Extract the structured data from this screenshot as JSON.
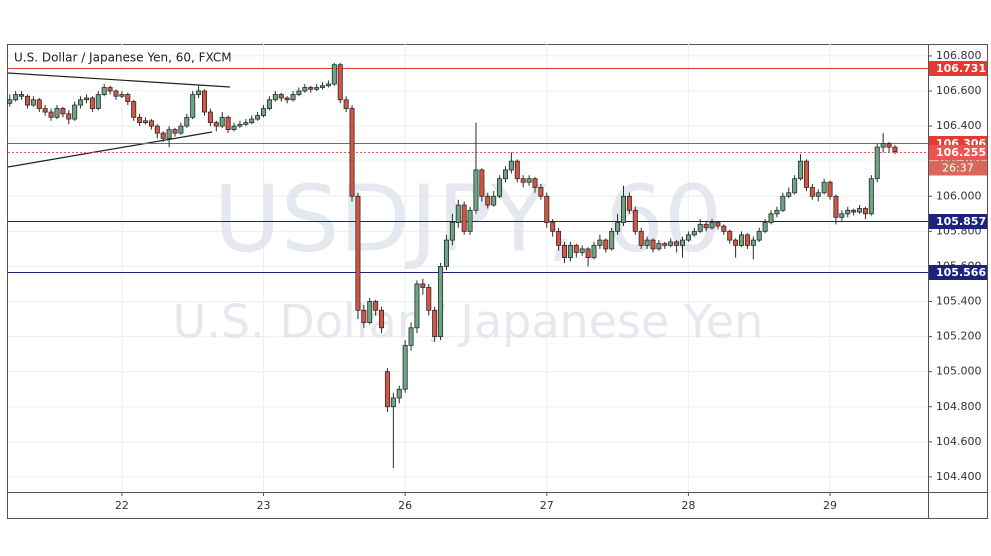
{
  "chart_data": {
    "type": "candlestick",
    "title": "U.S. Dollar / Japanese Yen, 60, FXCM",
    "watermark_symbol": "USDJPY, 60",
    "watermark_name": "U.S. Dollar / Japanese Yen",
    "countdown": "26:37",
    "up_color": "#6ba583",
    "down_color": "#d75442",
    "wick_color": "#2b2b2b",
    "grid": true,
    "xlim": [
      -0.3,
      155.6
    ],
    "xticks": [
      {
        "value": 19,
        "label": "22"
      },
      {
        "value": 43,
        "label": "23"
      },
      {
        "value": 67,
        "label": "26"
      },
      {
        "value": 91,
        "label": "27"
      },
      {
        "value": 115,
        "label": "28"
      },
      {
        "value": 139,
        "label": "29"
      }
    ],
    "ylim": [
      104.314,
      106.868
    ],
    "yticks": [
      {
        "value": 104.4,
        "label": "104.400"
      },
      {
        "value": 104.6,
        "label": "104.600"
      },
      {
        "value": 104.8,
        "label": "104.800"
      },
      {
        "value": 105.0,
        "label": "105.000"
      },
      {
        "value": 105.2,
        "label": "105.200"
      },
      {
        "value": 105.4,
        "label": "105.400"
      },
      {
        "value": 105.6,
        "label": "105.600"
      },
      {
        "value": 105.8,
        "label": "105.800"
      },
      {
        "value": 106.0,
        "label": "106.000"
      },
      {
        "value": 106.2,
        "label": "106.200"
      },
      {
        "value": 106.4,
        "label": "106.400"
      },
      {
        "value": 106.6,
        "label": "106.600"
      },
      {
        "value": 106.8,
        "label": "106.800"
      }
    ],
    "levels": [
      {
        "value": 106.731,
        "color": "#e53935",
        "dashed": false
      },
      {
        "value": 106.306,
        "color": "#e53935",
        "dashed": false
      },
      {
        "value": 106.255,
        "color": "#ef5350",
        "dashed": true
      },
      {
        "value": 105.857,
        "color": "#1a237e",
        "dashed": false
      },
      {
        "value": 105.566,
        "color": "#1a237e",
        "dashed": false
      }
    ],
    "x": [
      0,
      1,
      2,
      3,
      4,
      5,
      6,
      7,
      8,
      9,
      10,
      11,
      12,
      13,
      14,
      15,
      16,
      17,
      18,
      19,
      20,
      21,
      22,
      23,
      24,
      25,
      26,
      27,
      28,
      29,
      30,
      31,
      32,
      33,
      34,
      35,
      36,
      37,
      38,
      39,
      40,
      41,
      42,
      43,
      44,
      45,
      46,
      47,
      48,
      49,
      50,
      51,
      52,
      53,
      54,
      55,
      56,
      57,
      58,
      59,
      60,
      61,
      62,
      63,
      64,
      65,
      66,
      67,
      68,
      69,
      70,
      71,
      72,
      73,
      74,
      75,
      76,
      77,
      78,
      79,
      80,
      81,
      82,
      83,
      84,
      85,
      86,
      87,
      88,
      89,
      90,
      91,
      92,
      93,
      94,
      95,
      96,
      97,
      98,
      99,
      100,
      101,
      102,
      103,
      104,
      105,
      106,
      107,
      108,
      109,
      110,
      111,
      112,
      113,
      114,
      115,
      116,
      117,
      118,
      119,
      120,
      121,
      122,
      123,
      124,
      125,
      126,
      127,
      128,
      129,
      130,
      131,
      132,
      133,
      134,
      135,
      136,
      137,
      138,
      139,
      140,
      141,
      142,
      143,
      144,
      145,
      146,
      147,
      148,
      149,
      150
    ],
    "ohlc": [
      [
        106.53,
        106.58,
        106.51,
        106.55
      ],
      [
        106.55,
        106.6,
        106.54,
        106.58
      ],
      [
        106.58,
        106.6,
        106.55,
        106.57
      ],
      [
        106.57,
        106.58,
        106.5,
        106.52
      ],
      [
        106.52,
        106.57,
        106.51,
        106.55
      ],
      [
        106.55,
        106.56,
        106.48,
        106.5
      ],
      [
        106.5,
        106.52,
        106.46,
        106.48
      ],
      [
        106.48,
        106.5,
        106.43,
        106.45
      ],
      [
        106.45,
        106.52,
        106.44,
        106.5
      ],
      [
        106.5,
        106.51,
        106.45,
        106.47
      ],
      [
        106.47,
        106.49,
        106.41,
        106.44
      ],
      [
        106.44,
        106.54,
        106.43,
        106.52
      ],
      [
        106.52,
        106.57,
        106.5,
        106.55
      ],
      [
        106.55,
        106.58,
        106.53,
        106.56
      ],
      [
        106.56,
        106.57,
        106.48,
        106.5
      ],
      [
        106.5,
        106.6,
        106.49,
        106.58
      ],
      [
        106.58,
        106.64,
        106.57,
        106.62
      ],
      [
        106.62,
        106.63,
        106.58,
        106.6
      ],
      [
        106.6,
        106.61,
        106.55,
        106.57
      ],
      [
        106.57,
        106.6,
        106.56,
        106.58
      ],
      [
        106.58,
        106.59,
        106.52,
        106.54
      ],
      [
        106.54,
        106.55,
        106.43,
        106.45
      ],
      [
        106.45,
        106.47,
        106.4,
        106.42
      ],
      [
        106.42,
        106.45,
        106.41,
        106.43
      ],
      [
        106.43,
        106.44,
        106.38,
        106.4
      ],
      [
        106.4,
        106.41,
        106.33,
        106.36
      ],
      [
        106.36,
        106.37,
        106.31,
        106.33
      ],
      [
        106.33,
        106.4,
        106.28,
        106.38
      ],
      [
        106.38,
        106.39,
        106.34,
        106.36
      ],
      [
        106.36,
        106.42,
        106.35,
        106.4
      ],
      [
        106.4,
        106.47,
        106.39,
        106.45
      ],
      [
        106.45,
        106.6,
        106.44,
        106.58
      ],
      [
        106.58,
        106.63,
        106.56,
        106.6
      ],
      [
        106.6,
        106.61,
        106.46,
        106.48
      ],
      [
        106.48,
        106.5,
        106.4,
        106.42
      ],
      [
        106.42,
        106.43,
        106.37,
        106.4
      ],
      [
        106.4,
        106.48,
        106.39,
        106.45
      ],
      [
        106.45,
        106.46,
        106.36,
        106.38
      ],
      [
        106.38,
        106.42,
        106.37,
        106.4
      ],
      [
        106.4,
        106.43,
        106.39,
        106.41
      ],
      [
        106.41,
        106.44,
        106.4,
        106.42
      ],
      [
        106.42,
        106.46,
        106.41,
        106.44
      ],
      [
        106.44,
        106.48,
        106.43,
        106.46
      ],
      [
        106.46,
        106.52,
        106.45,
        106.5
      ],
      [
        106.5,
        106.57,
        106.49,
        106.55
      ],
      [
        106.55,
        106.6,
        106.54,
        106.58
      ],
      [
        106.58,
        106.59,
        106.54,
        106.56
      ],
      [
        106.56,
        106.57,
        106.53,
        106.55
      ],
      [
        106.55,
        106.6,
        106.54,
        106.58
      ],
      [
        106.58,
        106.62,
        106.57,
        106.6
      ],
      [
        106.6,
        106.64,
        106.59,
        106.62
      ],
      [
        106.62,
        106.63,
        106.59,
        106.61
      ],
      [
        106.61,
        106.64,
        106.6,
        106.62
      ],
      [
        106.62,
        106.65,
        106.61,
        106.63
      ],
      [
        106.63,
        106.66,
        106.62,
        106.64
      ],
      [
        106.64,
        106.76,
        106.63,
        106.75
      ],
      [
        106.75,
        106.76,
        106.53,
        106.55
      ],
      [
        106.55,
        106.57,
        106.48,
        106.5
      ],
      [
        106.5,
        106.52,
        105.97,
        106.0
      ],
      [
        106.0,
        106.02,
        105.3,
        105.35
      ],
      [
        105.35,
        105.38,
        105.25,
        105.28
      ],
      [
        105.28,
        105.42,
        105.27,
        105.4
      ],
      [
        105.4,
        105.41,
        105.32,
        105.35
      ],
      [
        105.35,
        105.37,
        105.22,
        105.25
      ],
      [
        105.0,
        105.02,
        104.77,
        104.8
      ],
      [
        104.8,
        104.88,
        104.45,
        104.85
      ],
      [
        104.85,
        104.92,
        104.82,
        104.9
      ],
      [
        104.9,
        105.18,
        104.88,
        105.15
      ],
      [
        105.15,
        105.28,
        105.12,
        105.25
      ],
      [
        105.25,
        105.52,
        105.22,
        105.5
      ],
      [
        105.5,
        105.53,
        105.44,
        105.48
      ],
      [
        105.48,
        105.5,
        105.32,
        105.35
      ],
      [
        105.35,
        105.37,
        105.17,
        105.2
      ],
      [
        105.2,
        105.62,
        105.18,
        105.6
      ],
      [
        105.6,
        105.78,
        105.58,
        105.75
      ],
      [
        105.75,
        105.9,
        105.72,
        105.85
      ],
      [
        105.85,
        105.98,
        105.82,
        105.95
      ],
      [
        105.95,
        105.97,
        105.78,
        105.8
      ],
      [
        105.8,
        105.94,
        105.78,
        105.92
      ],
      [
        105.92,
        106.42,
        105.9,
        106.15
      ],
      [
        106.15,
        106.16,
        105.97,
        106.0
      ],
      [
        106.0,
        106.02,
        105.93,
        105.95
      ],
      [
        105.95,
        106.03,
        105.94,
        106.0
      ],
      [
        106.0,
        106.12,
        105.99,
        106.1
      ],
      [
        106.1,
        106.17,
        106.08,
        106.15
      ],
      [
        106.15,
        106.25,
        106.13,
        106.2
      ],
      [
        106.2,
        106.21,
        106.08,
        106.1
      ],
      [
        106.1,
        106.12,
        106.05,
        106.08
      ],
      [
        106.08,
        106.12,
        106.06,
        106.1
      ],
      [
        106.1,
        106.11,
        106.02,
        106.05
      ],
      [
        106.05,
        106.07,
        105.98,
        106.0
      ],
      [
        106.0,
        106.02,
        105.82,
        105.85
      ],
      [
        105.85,
        105.87,
        105.77,
        105.8
      ],
      [
        105.8,
        105.82,
        105.69,
        105.72
      ],
      [
        105.72,
        105.74,
        105.62,
        105.65
      ],
      [
        105.65,
        105.74,
        105.63,
        105.72
      ],
      [
        105.72,
        105.73,
        105.65,
        105.68
      ],
      [
        105.68,
        105.72,
        105.66,
        105.7
      ],
      [
        105.7,
        105.71,
        105.6,
        105.65
      ],
      [
        105.65,
        105.74,
        105.64,
        105.72
      ],
      [
        105.72,
        105.78,
        105.7,
        105.75
      ],
      [
        105.75,
        105.76,
        105.68,
        105.7
      ],
      [
        105.7,
        105.82,
        105.69,
        105.8
      ],
      [
        105.8,
        105.9,
        105.78,
        105.85
      ],
      [
        105.85,
        106.06,
        105.83,
        106.0
      ],
      [
        106.0,
        106.02,
        105.9,
        105.92
      ],
      [
        105.92,
        105.94,
        105.78,
        105.8
      ],
      [
        105.8,
        105.82,
        105.7,
        105.72
      ],
      [
        105.72,
        105.77,
        105.7,
        105.75
      ],
      [
        105.75,
        105.76,
        105.68,
        105.7
      ],
      [
        105.7,
        105.75,
        105.69,
        105.73
      ],
      [
        105.73,
        105.74,
        105.7,
        105.72
      ],
      [
        105.72,
        105.76,
        105.71,
        105.74
      ],
      [
        105.74,
        105.75,
        105.68,
        105.72
      ],
      [
        105.72,
        105.77,
        105.65,
        105.75
      ],
      [
        105.75,
        105.8,
        105.74,
        105.78
      ],
      [
        105.78,
        105.82,
        105.77,
        105.8
      ],
      [
        105.8,
        105.87,
        105.79,
        105.84
      ],
      [
        105.84,
        105.86,
        105.8,
        105.82
      ],
      [
        105.82,
        105.87,
        105.81,
        105.85
      ],
      [
        105.85,
        105.86,
        105.81,
        105.83
      ],
      [
        105.83,
        105.84,
        105.78,
        105.8
      ],
      [
        105.8,
        105.81,
        105.73,
        105.75
      ],
      [
        105.75,
        105.76,
        105.65,
        105.72
      ],
      [
        105.72,
        105.8,
        105.71,
        105.78
      ],
      [
        105.78,
        105.79,
        105.7,
        105.72
      ],
      [
        105.72,
        105.77,
        105.64,
        105.75
      ],
      [
        105.75,
        105.82,
        105.74,
        105.8
      ],
      [
        105.8,
        105.87,
        105.79,
        105.85
      ],
      [
        105.85,
        105.92,
        105.84,
        105.9
      ],
      [
        105.9,
        105.94,
        105.88,
        105.92
      ],
      [
        105.92,
        106.02,
        105.91,
        106.0
      ],
      [
        106.0,
        106.05,
        105.99,
        106.02
      ],
      [
        106.02,
        106.12,
        106.01,
        106.1
      ],
      [
        106.1,
        106.24,
        106.09,
        106.2
      ],
      [
        106.2,
        106.21,
        106.03,
        106.05
      ],
      [
        106.05,
        106.07,
        105.98,
        106.0
      ],
      [
        106.0,
        106.04,
        105.97,
        106.02
      ],
      [
        106.02,
        106.1,
        106.01,
        106.08
      ],
      [
        106.08,
        106.09,
        105.98,
        106.0
      ],
      [
        106.0,
        106.01,
        105.84,
        105.88
      ],
      [
        105.88,
        105.92,
        105.86,
        105.9
      ],
      [
        105.9,
        105.94,
        105.88,
        105.92
      ],
      [
        105.92,
        105.93,
        105.89,
        105.91
      ],
      [
        105.91,
        105.95,
        105.9,
        105.93
      ],
      [
        105.93,
        105.94,
        105.87,
        105.9
      ],
      [
        105.9,
        106.12,
        105.89,
        106.1
      ],
      [
        106.1,
        106.3,
        106.08,
        106.28
      ],
      [
        106.28,
        106.36,
        106.25,
        106.3
      ],
      [
        106.3,
        106.31,
        106.25,
        106.28
      ],
      [
        106.28,
        106.29,
        106.24,
        106.255
      ]
    ]
  }
}
